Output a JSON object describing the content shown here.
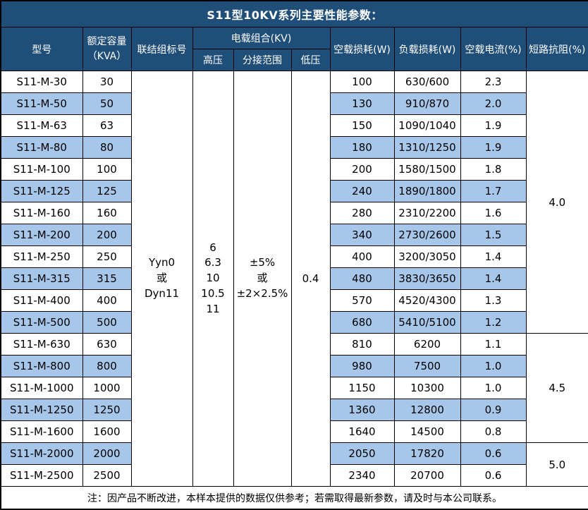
{
  "title": "S11型10KV系列主要性能参数：",
  "colors": {
    "header_bg": "#1F4E79",
    "header_text": "#FFFFFF",
    "stripe_bg": "#A7C7EA",
    "border": "#000000"
  },
  "header": {
    "model": "型号",
    "capacity_lines": [
      "额定容量",
      "（KVA）"
    ],
    "vector_group": "联结组标号",
    "voltage_group": "电载组合(KV)",
    "hv": "高压",
    "tap_range": "分接范围",
    "lv": "低压",
    "no_load_loss": "空载损耗(W)",
    "load_loss": "负载损耗(W)",
    "no_load_current": "空载电流(%)",
    "impedance": "短路抗阻(%)"
  },
  "merged": {
    "vector_group": [
      "Yyn0",
      "或",
      "Dyn11"
    ],
    "hv": [
      "6",
      "6.3",
      "10",
      "10.5",
      "11"
    ],
    "tap_range": [
      "±5%",
      "或",
      "±2×2.5%"
    ],
    "lv": "0.4"
  },
  "impedance_groups": [
    {
      "value": "4.0",
      "rows": 12
    },
    {
      "value": "4.5",
      "rows": 5
    },
    {
      "value": "5.0",
      "rows": 2
    }
  ],
  "rows": [
    {
      "model": "S11-M-30",
      "capacity": "30",
      "no_load_loss": "100",
      "load_loss": "630/600",
      "no_load_current": "2.3"
    },
    {
      "model": "S11-M-50",
      "capacity": "50",
      "no_load_loss": "130",
      "load_loss": "910/870",
      "no_load_current": "2.0"
    },
    {
      "model": "S11-M-63",
      "capacity": "63",
      "no_load_loss": "150",
      "load_loss": "1090/1040",
      "no_load_current": "1.9"
    },
    {
      "model": "S11-M-80",
      "capacity": "80",
      "no_load_loss": "180",
      "load_loss": "1310/1250",
      "no_load_current": "1.9"
    },
    {
      "model": "S11-M-100",
      "capacity": "100",
      "no_load_loss": "200",
      "load_loss": "1580/1500",
      "no_load_current": "1.8"
    },
    {
      "model": "S11-M-125",
      "capacity": "125",
      "no_load_loss": "240",
      "load_loss": "1890/1800",
      "no_load_current": "1.7"
    },
    {
      "model": "S11-M-160",
      "capacity": "160",
      "no_load_loss": "280",
      "load_loss": "2310/2200",
      "no_load_current": "1.6"
    },
    {
      "model": "S11-M-200",
      "capacity": "200",
      "no_load_loss": "340",
      "load_loss": "2730/2600",
      "no_load_current": "1.5"
    },
    {
      "model": "S11-M-250",
      "capacity": "250",
      "no_load_loss": "400",
      "load_loss": "3200/3050",
      "no_load_current": "1.4"
    },
    {
      "model": "S11-M-315",
      "capacity": "315",
      "no_load_loss": "480",
      "load_loss": "3830/3650",
      "no_load_current": "1.4"
    },
    {
      "model": "S11-M-400",
      "capacity": "400",
      "no_load_loss": "570",
      "load_loss": "4520/4300",
      "no_load_current": "1.3"
    },
    {
      "model": "S11-M-500",
      "capacity": "500",
      "no_load_loss": "680",
      "load_loss": "5410/5100",
      "no_load_current": "1.2"
    },
    {
      "model": "S11-M-630",
      "capacity": "630",
      "no_load_loss": "810",
      "load_loss": "6200",
      "no_load_current": "1.1"
    },
    {
      "model": "S11-M-800",
      "capacity": "800",
      "no_load_loss": "980",
      "load_loss": "7500",
      "no_load_current": "1.0"
    },
    {
      "model": "S11-M-1000",
      "capacity": "1000",
      "no_load_loss": "1150",
      "load_loss": "10300",
      "no_load_current": "1.0"
    },
    {
      "model": "S11-M-1250",
      "capacity": "1250",
      "no_load_loss": "1360",
      "load_loss": "12800",
      "no_load_current": "0.9"
    },
    {
      "model": "S11-M-1600",
      "capacity": "1600",
      "no_load_loss": "1640",
      "load_loss": "14500",
      "no_load_current": "0.8"
    },
    {
      "model": "S11-M-2000",
      "capacity": "2000",
      "no_load_loss": "2050",
      "load_loss": "17820",
      "no_load_current": "0.6"
    },
    {
      "model": "S11-M-2500",
      "capacity": "2500",
      "no_load_loss": "2340",
      "load_loss": "20700",
      "no_load_current": "0.6"
    }
  ],
  "note": "注：因产品不断改进，本样本提供的数据仅供参考；若需取得最新参数，请及时与本公司联系。"
}
